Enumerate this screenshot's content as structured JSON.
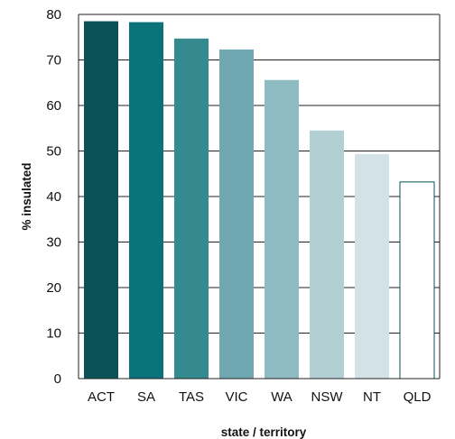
{
  "chart_data": {
    "type": "bar",
    "title": "",
    "xlabel": "state / territory",
    "ylabel": "% insulated",
    "categories": [
      "ACT",
      "SA",
      "TAS",
      "VIC",
      "WA",
      "NSW",
      "NT",
      "QLD"
    ],
    "values": [
      78.5,
      78.3,
      74.7,
      72.3,
      65.6,
      54.5,
      49.3,
      43.2
    ],
    "bar_colors": [
      "#0a5158",
      "#0a737a",
      "#358a8f",
      "#6fa8b0",
      "#8fbcc3",
      "#b2d0d4",
      "#d3e2e6",
      "#ffffff"
    ],
    "bar_outline": "#0a5158",
    "ylim": [
      0,
      80
    ],
    "yticks": [
      0,
      10,
      20,
      30,
      40,
      50,
      60,
      70,
      80
    ],
    "grid": true,
    "legend": "none"
  }
}
